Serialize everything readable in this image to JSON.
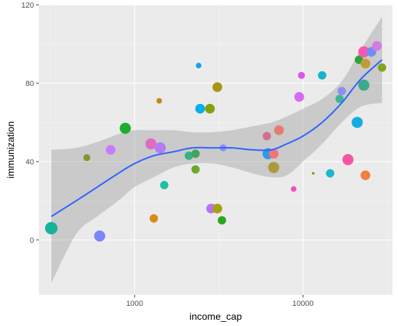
{
  "chart_data": {
    "type": "scatter",
    "title": "",
    "xlabel": "income_cap",
    "ylabel": "immunization",
    "x_scale": "log10",
    "xlim": [
      270,
      34000
    ],
    "ylim": [
      -28,
      120
    ],
    "x_ticks": [
      {
        "value": 1000,
        "label": "1000"
      },
      {
        "value": 10000,
        "label": "10000"
      }
    ],
    "x_minor": [
      316.2,
      3162.3,
      31622.8
    ],
    "y_ticks": [
      {
        "value": 0,
        "label": "0"
      },
      {
        "value": 40,
        "label": "40"
      },
      {
        "value": 80,
        "label": "80"
      },
      {
        "value": 120,
        "label": "120"
      }
    ],
    "y_minor": [
      20,
      60,
      100
    ],
    "grid": true,
    "legend": "none",
    "colors": {
      "panel_bg": "#ebebeb",
      "grid_major": "#ffffff",
      "smooth_line": "#3366ff",
      "ribbon": "#999999"
    },
    "points": [
      {
        "x": 320,
        "y": 6,
        "size": 9,
        "color": "#17b39a"
      },
      {
        "x": 520,
        "y": 42,
        "size": 5,
        "color": "#7f9a2a"
      },
      {
        "x": 620,
        "y": 2,
        "size": 8,
        "color": "#7b86fb"
      },
      {
        "x": 720,
        "y": 46,
        "size": 7,
        "color": "#c77cff"
      },
      {
        "x": 880,
        "y": 57,
        "size": 8,
        "color": "#1fad31"
      },
      {
        "x": 1250,
        "y": 49,
        "size": 8,
        "color": "#dd6cc2"
      },
      {
        "x": 1300,
        "y": 11,
        "size": 6,
        "color": "#d98a15"
      },
      {
        "x": 1400,
        "y": 71,
        "size": 4,
        "color": "#c08b11"
      },
      {
        "x": 1420,
        "y": 47,
        "size": 8,
        "color": "#b47cf4"
      },
      {
        "x": 1500,
        "y": 28,
        "size": 6,
        "color": "#1ec0a2"
      },
      {
        "x": 2100,
        "y": 43,
        "size": 6,
        "color": "#37b382"
      },
      {
        "x": 2300,
        "y": 44,
        "size": 6,
        "color": "#43a35c"
      },
      {
        "x": 2300,
        "y": 36,
        "size": 6,
        "color": "#6ca82e"
      },
      {
        "x": 2400,
        "y": 89,
        "size": 4,
        "color": "#15a3e6"
      },
      {
        "x": 2450,
        "y": 67,
        "size": 7,
        "color": "#00b0f0"
      },
      {
        "x": 2800,
        "y": 67,
        "size": 7,
        "color": "#82a20a"
      },
      {
        "x": 2850,
        "y": 16,
        "size": 7,
        "color": "#b870f6"
      },
      {
        "x": 3100,
        "y": 78,
        "size": 7,
        "color": "#a89612"
      },
      {
        "x": 3100,
        "y": 16,
        "size": 7,
        "color": "#a8a010"
      },
      {
        "x": 3300,
        "y": 10,
        "size": 6,
        "color": "#2aa61c"
      },
      {
        "x": 3350,
        "y": 47,
        "size": 5,
        "color": "#8e8cf8"
      },
      {
        "x": 6100,
        "y": 53,
        "size": 6,
        "color": "#d1708e"
      },
      {
        "x": 6200,
        "y": 44,
        "size": 8,
        "color": "#2a9ee0"
      },
      {
        "x": 6700,
        "y": 44,
        "size": 7,
        "color": "#f0727c"
      },
      {
        "x": 6700,
        "y": 37,
        "size": 8,
        "color": "#ae9a3c"
      },
      {
        "x": 7200,
        "y": 56,
        "size": 7,
        "color": "#e57c70"
      },
      {
        "x": 8800,
        "y": 26,
        "size": 4,
        "color": "#f84cb9"
      },
      {
        "x": 9500,
        "y": 73,
        "size": 7,
        "color": "#d66af5"
      },
      {
        "x": 9800,
        "y": 84,
        "size": 5,
        "color": "#da52f2"
      },
      {
        "x": 11500,
        "y": 34,
        "size": 2,
        "color": "#76ac18"
      },
      {
        "x": 13000,
        "y": 84,
        "size": 6,
        "color": "#16b4cc"
      },
      {
        "x": 14500,
        "y": 34,
        "size": 6,
        "color": "#1cb7cf"
      },
      {
        "x": 16500,
        "y": 72,
        "size": 6,
        "color": "#3ab891"
      },
      {
        "x": 17000,
        "y": 76,
        "size": 6,
        "color": "#8c8ff2"
      },
      {
        "x": 18500,
        "y": 41,
        "size": 8,
        "color": "#f755a3"
      },
      {
        "x": 21000,
        "y": 60,
        "size": 8,
        "color": "#12aee2"
      },
      {
        "x": 21500,
        "y": 92,
        "size": 6,
        "color": "#2da535"
      },
      {
        "x": 23000,
        "y": 96,
        "size": 8,
        "color": "#f954b0"
      },
      {
        "x": 23000,
        "y": 79,
        "size": 8,
        "color": "#3aa98d"
      },
      {
        "x": 23500,
        "y": 33,
        "size": 7,
        "color": "#ef8142"
      },
      {
        "x": 23500,
        "y": 90,
        "size": 7,
        "color": "#c39a38"
      },
      {
        "x": 25500,
        "y": 96,
        "size": 7,
        "color": "#6f8ef6"
      },
      {
        "x": 27500,
        "y": 99,
        "size": 7,
        "color": "#d87ae1"
      },
      {
        "x": 29500,
        "y": 88,
        "size": 6,
        "color": "#7fa521"
      }
    ],
    "smooth": [
      {
        "x": 320,
        "y": 12,
        "ymin": -22,
        "ymax": 46
      },
      {
        "x": 450,
        "y": 20,
        "ymin": 3,
        "ymax": 47
      },
      {
        "x": 600,
        "y": 27,
        "ymin": 12,
        "ymax": 50
      },
      {
        "x": 800,
        "y": 34,
        "ymin": 20,
        "ymax": 54
      },
      {
        "x": 1000,
        "y": 39,
        "ymin": 27,
        "ymax": 56
      },
      {
        "x": 1300,
        "y": 43,
        "ymin": 32,
        "ymax": 56
      },
      {
        "x": 1700,
        "y": 45,
        "ymin": 37,
        "ymax": 56
      },
      {
        "x": 2200,
        "y": 47,
        "ymin": 39,
        "ymax": 55
      },
      {
        "x": 2900,
        "y": 47,
        "ymin": 39,
        "ymax": 55
      },
      {
        "x": 3800,
        "y": 47,
        "ymin": 37,
        "ymax": 56
      },
      {
        "x": 5000,
        "y": 46,
        "ymin": 34,
        "ymax": 58
      },
      {
        "x": 6500,
        "y": 46,
        "ymin": 32,
        "ymax": 60
      },
      {
        "x": 8000,
        "y": 49,
        "ymin": 33,
        "ymax": 63
      },
      {
        "x": 10000,
        "y": 53,
        "ymin": 40,
        "ymax": 67
      },
      {
        "x": 13000,
        "y": 60,
        "ymin": 49,
        "ymax": 72
      },
      {
        "x": 17000,
        "y": 70,
        "ymin": 60,
        "ymax": 81
      },
      {
        "x": 22000,
        "y": 82,
        "ymin": 68,
        "ymax": 97
      },
      {
        "x": 29500,
        "y": 92,
        "ymin": 70,
        "ymax": 114
      }
    ]
  }
}
